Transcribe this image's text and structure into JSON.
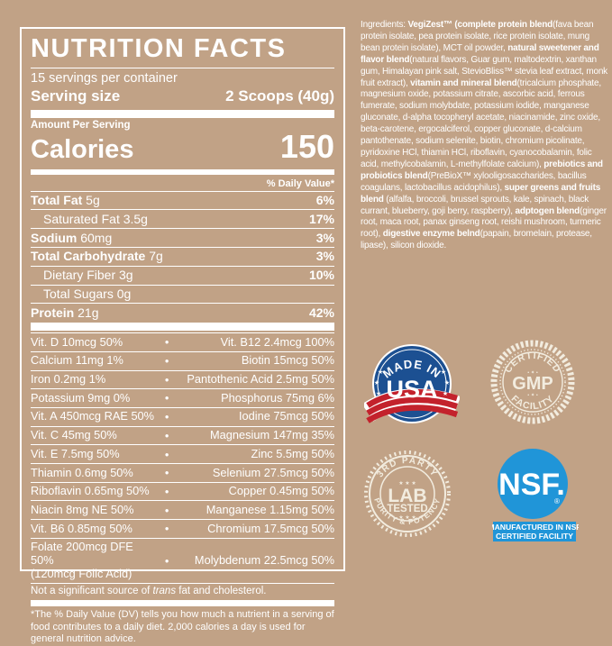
{
  "colors": {
    "background_tan": "#c1a286",
    "label_white": "#ffffff",
    "usa_blue": "#1c5092",
    "usa_red": "#c3222c",
    "badge_cream": "#f2ecdf",
    "nsf_blue": "#2095d8"
  },
  "label": {
    "title": "NUTRITION FACTS",
    "servings_per_container": "15 servings per container",
    "serving_size_label": "Serving size",
    "serving_size_value": "2 Scoops (40g)",
    "amount_per_serving": "Amount Per Serving",
    "calories_label": "Calories",
    "calories_value": "150",
    "daily_value_header": "% Daily Value*",
    "nutrients": [
      {
        "name": "Total Fat",
        "amount": "5g",
        "dv": "6%",
        "bold": true,
        "indent": false
      },
      {
        "name": "Saturated Fat",
        "amount": "3.5g",
        "dv": "17%",
        "bold": false,
        "indent": true
      },
      {
        "name": "Sodium",
        "amount": "60mg",
        "dv": "3%",
        "bold": true,
        "indent": false
      },
      {
        "name": "Total Carbohydrate",
        "amount": "7g",
        "dv": "3%",
        "bold": true,
        "indent": false
      },
      {
        "name": "Dietary Fiber",
        "amount": "3g",
        "dv": "10%",
        "bold": false,
        "indent": true
      },
      {
        "name": "Total Sugars",
        "amount": "0g",
        "dv": "",
        "bold": false,
        "indent": true
      },
      {
        "name": "Protein",
        "amount": "21g",
        "dv": "42%",
        "bold": true,
        "indent": false
      }
    ],
    "bullet": "●",
    "micronutrients": [
      {
        "left": "Vit. D 10mcg 50%",
        "right": "Vit. B12 2.4mcg 100%"
      },
      {
        "left": "Calcium 11mg 1%",
        "right": "Biotin 15mcg 50%"
      },
      {
        "left": "Iron 0.2mg 1%",
        "right": "Pantothenic Acid 2.5mg 50%"
      },
      {
        "left": "Potassium 9mg 0%",
        "right": "Phosphorus 75mg 6%"
      },
      {
        "left": "Vit. A 450mcg RAE 50%",
        "right": "Iodine 75mcg 50%"
      },
      {
        "left": "Vit. C 45mg 50%",
        "right": "Magnesium 147mg 35%"
      },
      {
        "left": "Vit. E 7.5mg 50%",
        "right": "Zinc 5.5mg 50%"
      },
      {
        "left": "Thiamin 0.6mg 50%",
        "right": "Selenium 27.5mcg 50%"
      },
      {
        "left": "Riboflavin 0.65mg 50%",
        "right": "Copper 0.45mg 50%"
      },
      {
        "left": "Niacin 8mg NE 50%",
        "right": "Manganese 1.15mg 50%"
      },
      {
        "left": "Vit. B6 0.85mg 50%",
        "right": "Chromium 17.5mcg 50%"
      },
      {
        "left": "Folate 200mcg DFE 50%",
        "left2": "(120mcg Folic Acid)",
        "right": "Molybdenum 22.5mcg 50%"
      }
    ],
    "trans_note_prefix": "Not a significant source of ",
    "trans_italic": "trans",
    "trans_note_suffix": " fat and cholesterol.",
    "footnote": "*The % Daily Value (DV) tells you how much a nutrient in a serving of food contributes to a daily diet. 2,000 calories a day is used for general nutrition advice."
  },
  "ingredients": {
    "segments": [
      {
        "text": "Ingredients: ",
        "bold": false
      },
      {
        "text": "VegiZest™ (complete protein blend",
        "bold": true
      },
      {
        "text": "(fava bean protein isolate, pea protein isolate, rice protein isolate, mung bean protein isolate), MCT oil powder, ",
        "bold": false
      },
      {
        "text": "natural sweetener and flavor blend",
        "bold": true
      },
      {
        "text": "(natural flavors, Guar gum, maltodextrin, xanthan gum, Himalayan pink salt, StevioBliss™ stevia leaf extract, monk fruit extract), ",
        "bold": false
      },
      {
        "text": "vitamin and mineral blend",
        "bold": true
      },
      {
        "text": "(tricalcium phosphate, magnesium oxide, potassium citrate, ascorbic acid, ferrous fumerate, sodium molybdate, potassium iodide, manganese gluconate, d-alpha tocopheryl acetate, niacinamide, zinc oxide, beta-carotene, ergocalciferol, copper gluconate, d-calcium pantothenate, sodium selenite, biotin, chromium picolinate, pyridoxine HCl, thiamin HCl, riboflavin, cyanocobalamin, folic acid, methylcobalamin, L-methylfolate calcium), ",
        "bold": false
      },
      {
        "text": "prebiotics and probiotics blend",
        "bold": true
      },
      {
        "text": "(PreBioX™ xylooligosaccharides, bacillus coagulans, lactobacillus acidophilus), ",
        "bold": false
      },
      {
        "text": "super greens and fruits blend",
        "bold": true
      },
      {
        "text": " (alfalfa, broccoli, brussel sprouts, kale, spinach, black currant, blueberry, goji berry, raspberry), ",
        "bold": false
      },
      {
        "text": "adptogen blend",
        "bold": true
      },
      {
        "text": "(ginger root, maca root, panax ginseng root, reishi mushroom, turmeric root), ",
        "bold": false
      },
      {
        "text": "digestive enzyme belnd",
        "bold": true
      },
      {
        "text": "(papain, bromelain, protease, lipase), silicon dioxide.",
        "bold": false
      }
    ]
  },
  "badges": {
    "usa": {
      "arc_text": "MADE IN",
      "center": "USA",
      "star": "★"
    },
    "gmp": {
      "top": "CERTIFIED",
      "center": "GMP",
      "bottom": "FACILITY",
      "ornament": "• ✦ •"
    },
    "lab": {
      "top": "3RD PARTY",
      "line1": "LAB",
      "line2": "TESTED",
      "bottom": "PURITY & POTENCY",
      "stars": "★ ★ ★"
    },
    "nsf": {
      "name": "NSF.",
      "reg": "®",
      "line1": "MANUFACTURED IN NSF",
      "line2": "CERTIFIED FACILITY"
    }
  }
}
